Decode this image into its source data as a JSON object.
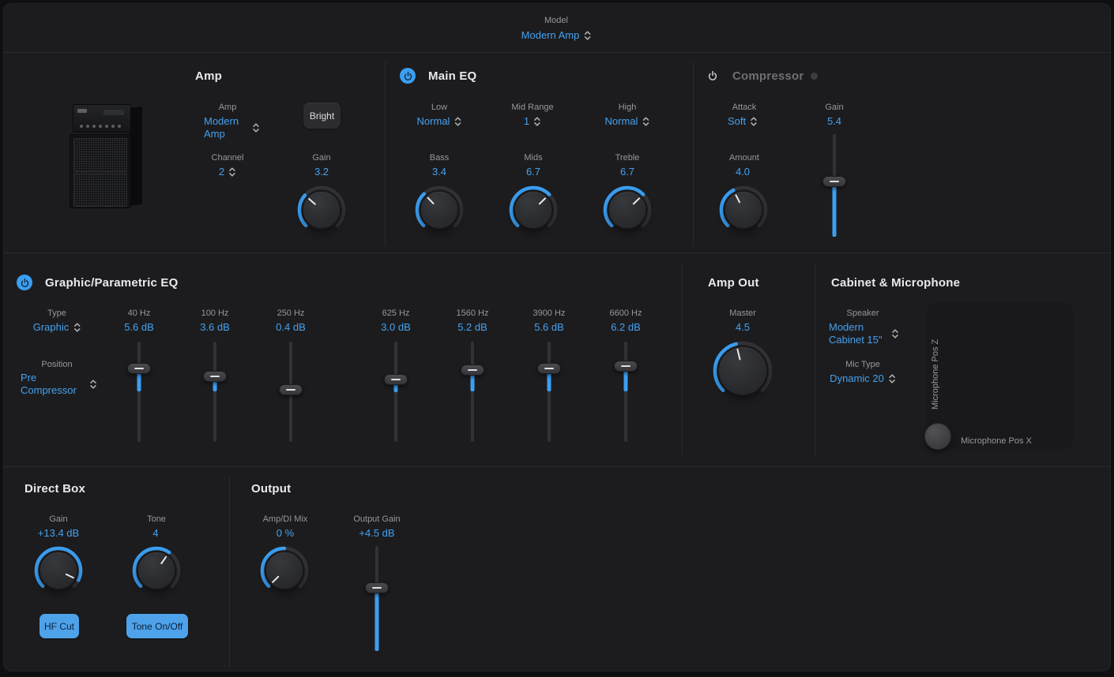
{
  "model": {
    "label": "Model",
    "value": "Modern Amp"
  },
  "amp": {
    "title": "Amp",
    "selector_label": "Amp",
    "selector_value": "Modern Amp",
    "bright_label": "Bright",
    "channel_label": "Channel",
    "channel_value": "2",
    "gain_label": "Gain",
    "gain_value": "3.2",
    "gain_knob": {
      "frac": 0.32
    }
  },
  "main_eq": {
    "title": "Main EQ",
    "low_label": "Low",
    "low_value": "Normal",
    "mid_range_label": "Mid Range",
    "mid_range_value": "1",
    "high_label": "High",
    "high_value": "Normal",
    "bass_label": "Bass",
    "bass_value": "3.4",
    "bass_knob": {
      "frac": 0.34
    },
    "mids_label": "Mids",
    "mids_value": "6.7",
    "mids_knob": {
      "frac": 0.67
    },
    "treble_label": "Treble",
    "treble_value": "6.7",
    "treble_knob": {
      "frac": 0.67
    }
  },
  "compressor": {
    "title": "Compressor",
    "attack_label": "Attack",
    "attack_value": "Soft",
    "gain_label": "Gain",
    "gain_value": "5.4",
    "gain_slider": {
      "frac": 0.54,
      "fill": "bottom"
    },
    "amount_label": "Amount",
    "amount_value": "4.0",
    "amount_knob": {
      "frac": 0.4
    }
  },
  "gpeq": {
    "title": "Graphic/Parametric EQ",
    "type_label": "Type",
    "type_value": "Graphic",
    "position_label": "Position",
    "position_value": "Pre Compressor",
    "bands": [
      {
        "freq": "40 Hz",
        "gain": "5.6 dB",
        "frac": 0.733
      },
      {
        "freq": "100 Hz",
        "gain": "3.6 dB",
        "frac": 0.65
      },
      {
        "freq": "250 Hz",
        "gain": "0.4 dB",
        "frac": 0.517
      },
      {
        "freq": "625 Hz",
        "gain": "3.0 dB",
        "frac": 0.625
      },
      {
        "freq": "1560 Hz",
        "gain": "5.2 dB",
        "frac": 0.717
      },
      {
        "freq": "3900 Hz",
        "gain": "5.6 dB",
        "frac": 0.733
      },
      {
        "freq": "6600 Hz",
        "gain": "6.2 dB",
        "frac": 0.758
      }
    ]
  },
  "amp_out": {
    "title": "Amp Out",
    "master_label": "Master",
    "master_value": "4.5",
    "master_knob": {
      "frac": 0.45
    }
  },
  "cab_mic": {
    "title": "Cabinet & Microphone",
    "speaker_label": "Speaker",
    "speaker_value": "Modern Cabinet 15\"",
    "mic_type_label": "Mic Type",
    "mic_type_value": "Dynamic 20",
    "pad": {
      "z_label": "Microphone Pos Z",
      "x_label": "Microphone Pos X"
    }
  },
  "direct_box": {
    "title": "Direct Box",
    "gain_label": "Gain",
    "gain_value": "+13.4 dB",
    "gain_knob": {
      "frac": 0.93
    },
    "tone_label": "Tone",
    "tone_value": "4",
    "tone_knob": {
      "frac": 0.63
    },
    "hf_cut_label": "HF Cut",
    "tone_button_label": "Tone On/Off"
  },
  "output": {
    "title": "Output",
    "mix_label": "Amp/DI Mix",
    "mix_value": "0 %",
    "mix_knob": {
      "frac": 0,
      "pointer": 0,
      "arc_start": -135,
      "arc_sweep": 135
    },
    "gain_label": "Output Gain",
    "gain_value": "+4.5 dB",
    "gain_slider": {
      "frac": 0.6,
      "fill": "bottom"
    }
  },
  "colors": {
    "accent_blue": "#3b9ff2",
    "button_blue": "#4da2ea",
    "background": "#1c1c1e"
  }
}
